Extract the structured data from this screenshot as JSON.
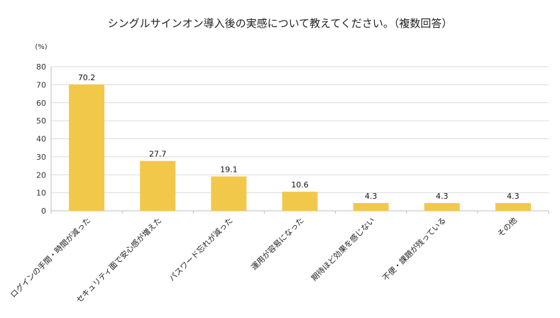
{
  "chart_data": {
    "type": "bar",
    "title": "シングルサインオン導入後の実感について教えてください。（複数回答）",
    "ylabel": "(%)",
    "xlabel": "",
    "categories": [
      "ログインの手間・時間が減った",
      "セキュリティ面で安心感が増えた",
      "パスワード忘れが減った",
      "運用が容易になった",
      "期待ほど効果を感じない",
      "不便・課題が残っている",
      "その他"
    ],
    "values": [
      70.2,
      27.7,
      19.1,
      10.6,
      4.3,
      4.3,
      4.3
    ],
    "ylim": [
      0,
      80
    ],
    "yticks": [
      0,
      10,
      20,
      30,
      40,
      50,
      60,
      70,
      80
    ],
    "grid": true,
    "legend": "none",
    "bar_color": "#f2c84b",
    "grid_color": "#d9d9d9",
    "axis_color": "#bfbfbf"
  }
}
